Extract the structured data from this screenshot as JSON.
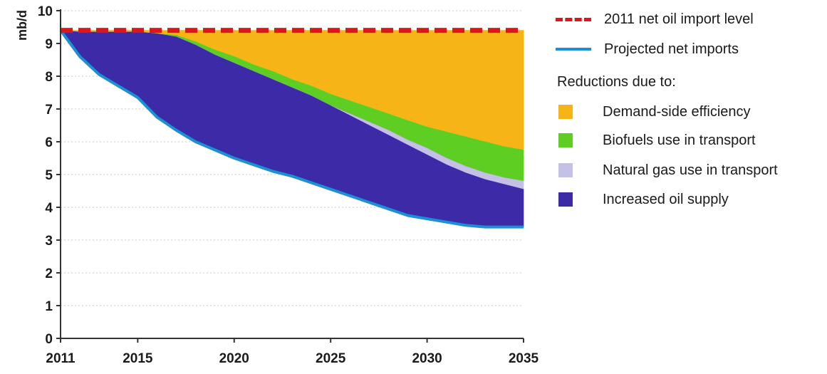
{
  "chart_data": {
    "type": "area",
    "unit_label": "mb/d",
    "x": [
      2011,
      2012,
      2013,
      2014,
      2015,
      2016,
      2017,
      2018,
      2019,
      2020,
      2021,
      2022,
      2023,
      2024,
      2025,
      2026,
      2027,
      2028,
      2029,
      2030,
      2031,
      2032,
      2033,
      2034,
      2035
    ],
    "xticks": [
      2011,
      2015,
      2020,
      2025,
      2030,
      2035
    ],
    "yticks": [
      0,
      1,
      2,
      3,
      4,
      5,
      6,
      7,
      8,
      9,
      10
    ],
    "xlim": [
      2011,
      2035
    ],
    "ylim": [
      0,
      10
    ],
    "grid": "horizontal dotted",
    "legend_position": "right",
    "reference_line": {
      "name": "2011 net oil import level",
      "value": 9.4,
      "color": "#d9171e",
      "style": "dashed"
    },
    "projected_net_imports": {
      "name": "Projected net imports",
      "color": "#1b8fd8",
      "values": [
        9.4,
        8.6,
        8.05,
        7.7,
        7.35,
        6.75,
        6.35,
        6.0,
        5.75,
        5.5,
        5.3,
        5.1,
        4.95,
        4.75,
        4.55,
        4.35,
        4.15,
        3.95,
        3.75,
        3.65,
        3.55,
        3.45,
        3.4,
        3.4,
        3.4
      ]
    },
    "legend_heading": "Reductions due to:",
    "series": [
      {
        "name": "Demand-side efficiency",
        "color": "#f6b417",
        "upper": [
          9.4,
          9.4,
          9.4,
          9.4,
          9.4,
          9.4,
          9.4,
          9.4,
          9.4,
          9.4,
          9.4,
          9.4,
          9.4,
          9.4,
          9.4,
          9.4,
          9.4,
          9.4,
          9.4,
          9.4,
          9.4,
          9.4,
          9.4,
          9.4,
          9.4
        ],
        "lower": [
          9.4,
          9.35,
          9.35,
          9.35,
          9.35,
          9.3,
          9.25,
          9.05,
          8.8,
          8.6,
          8.35,
          8.15,
          7.9,
          7.7,
          7.45,
          7.25,
          7.05,
          6.85,
          6.65,
          6.45,
          6.3,
          6.15,
          6.0,
          5.85,
          5.75
        ]
      },
      {
        "name": "Biofuels use in transport",
        "color": "#5fce22",
        "upper": [
          9.4,
          9.35,
          9.35,
          9.35,
          9.35,
          9.3,
          9.25,
          9.05,
          8.8,
          8.6,
          8.35,
          8.15,
          7.9,
          7.7,
          7.45,
          7.25,
          7.05,
          6.85,
          6.65,
          6.45,
          6.3,
          6.15,
          6.0,
          5.85,
          5.75
        ],
        "lower": [
          9.4,
          9.35,
          9.35,
          9.35,
          9.35,
          9.3,
          9.2,
          8.95,
          8.65,
          8.4,
          8.15,
          7.9,
          7.65,
          7.4,
          7.1,
          6.85,
          6.6,
          6.35,
          6.05,
          5.8,
          5.5,
          5.25,
          5.05,
          4.9,
          4.8
        ]
      },
      {
        "name": "Natural gas use in transport",
        "color": "#c4c0e6",
        "upper": [
          9.4,
          9.35,
          9.35,
          9.35,
          9.35,
          9.3,
          9.2,
          8.95,
          8.65,
          8.4,
          8.15,
          7.9,
          7.65,
          7.4,
          7.1,
          6.85,
          6.6,
          6.35,
          6.05,
          5.8,
          5.5,
          5.25,
          5.05,
          4.9,
          4.8
        ],
        "lower": [
          9.4,
          9.35,
          9.35,
          9.35,
          9.35,
          9.3,
          9.2,
          8.95,
          8.65,
          8.4,
          8.15,
          7.9,
          7.65,
          7.4,
          7.1,
          6.8,
          6.5,
          6.2,
          5.9,
          5.6,
          5.3,
          5.05,
          4.85,
          4.7,
          4.55
        ]
      },
      {
        "name": "Increased oil supply",
        "color": "#3d2aa6",
        "upper": [
          9.4,
          9.35,
          9.35,
          9.35,
          9.35,
          9.3,
          9.2,
          8.95,
          8.65,
          8.4,
          8.15,
          7.9,
          7.65,
          7.4,
          7.1,
          6.8,
          6.5,
          6.2,
          5.9,
          5.6,
          5.3,
          5.05,
          4.85,
          4.7,
          4.55
        ],
        "lower": [
          9.4,
          8.6,
          8.05,
          7.7,
          7.35,
          6.75,
          6.35,
          6.0,
          5.75,
          5.5,
          5.3,
          5.1,
          4.95,
          4.75,
          4.55,
          4.35,
          4.15,
          3.95,
          3.75,
          3.65,
          3.55,
          3.45,
          3.4,
          3.4,
          3.4
        ]
      }
    ]
  }
}
